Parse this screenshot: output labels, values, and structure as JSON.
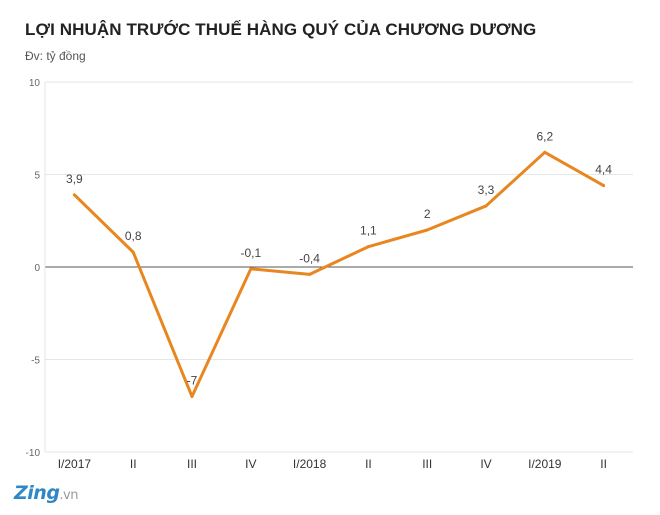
{
  "title": "LỢI NHUẬN TRƯỚC THUẾ HÀNG QUÝ CỦA CHƯƠNG DƯƠNG",
  "subtitle": "Đv: tỷ đồng",
  "logo": {
    "brand": "Zing",
    "tld": ".vn"
  },
  "colors": {
    "line": "#e8861f",
    "grid": "#e6e6e6",
    "zero_line": "#555555",
    "text": "#444444"
  },
  "chart_data": {
    "type": "line",
    "title": "LỢI NHUẬN TRƯỚC THUẾ HÀNG QUÝ CỦA CHƯƠNG DƯƠNG",
    "subtitle": "Đv: tỷ đồng",
    "categories": [
      "I/2017",
      "II",
      "III",
      "IV",
      "I/2018",
      "II",
      "III",
      "IV",
      "I/2019",
      "II"
    ],
    "series": [
      {
        "values": [
          3.9,
          0.8,
          -7,
          -0.1,
          -0.4,
          1.1,
          2,
          3.3,
          6.2,
          4.4
        ],
        "labels": [
          "3,9",
          "0,8",
          "-7",
          "-0,1",
          "-0,4",
          "1,1",
          "2",
          "3,3",
          "6,2",
          "4,4"
        ]
      }
    ],
    "ylim": [
      -10,
      10
    ],
    "yticks": [
      10,
      5,
      0,
      -5,
      -10
    ],
    "ytick_labels": [
      "10",
      "5",
      "0",
      "-5",
      "-10"
    ],
    "grid": true,
    "legend": "none"
  }
}
